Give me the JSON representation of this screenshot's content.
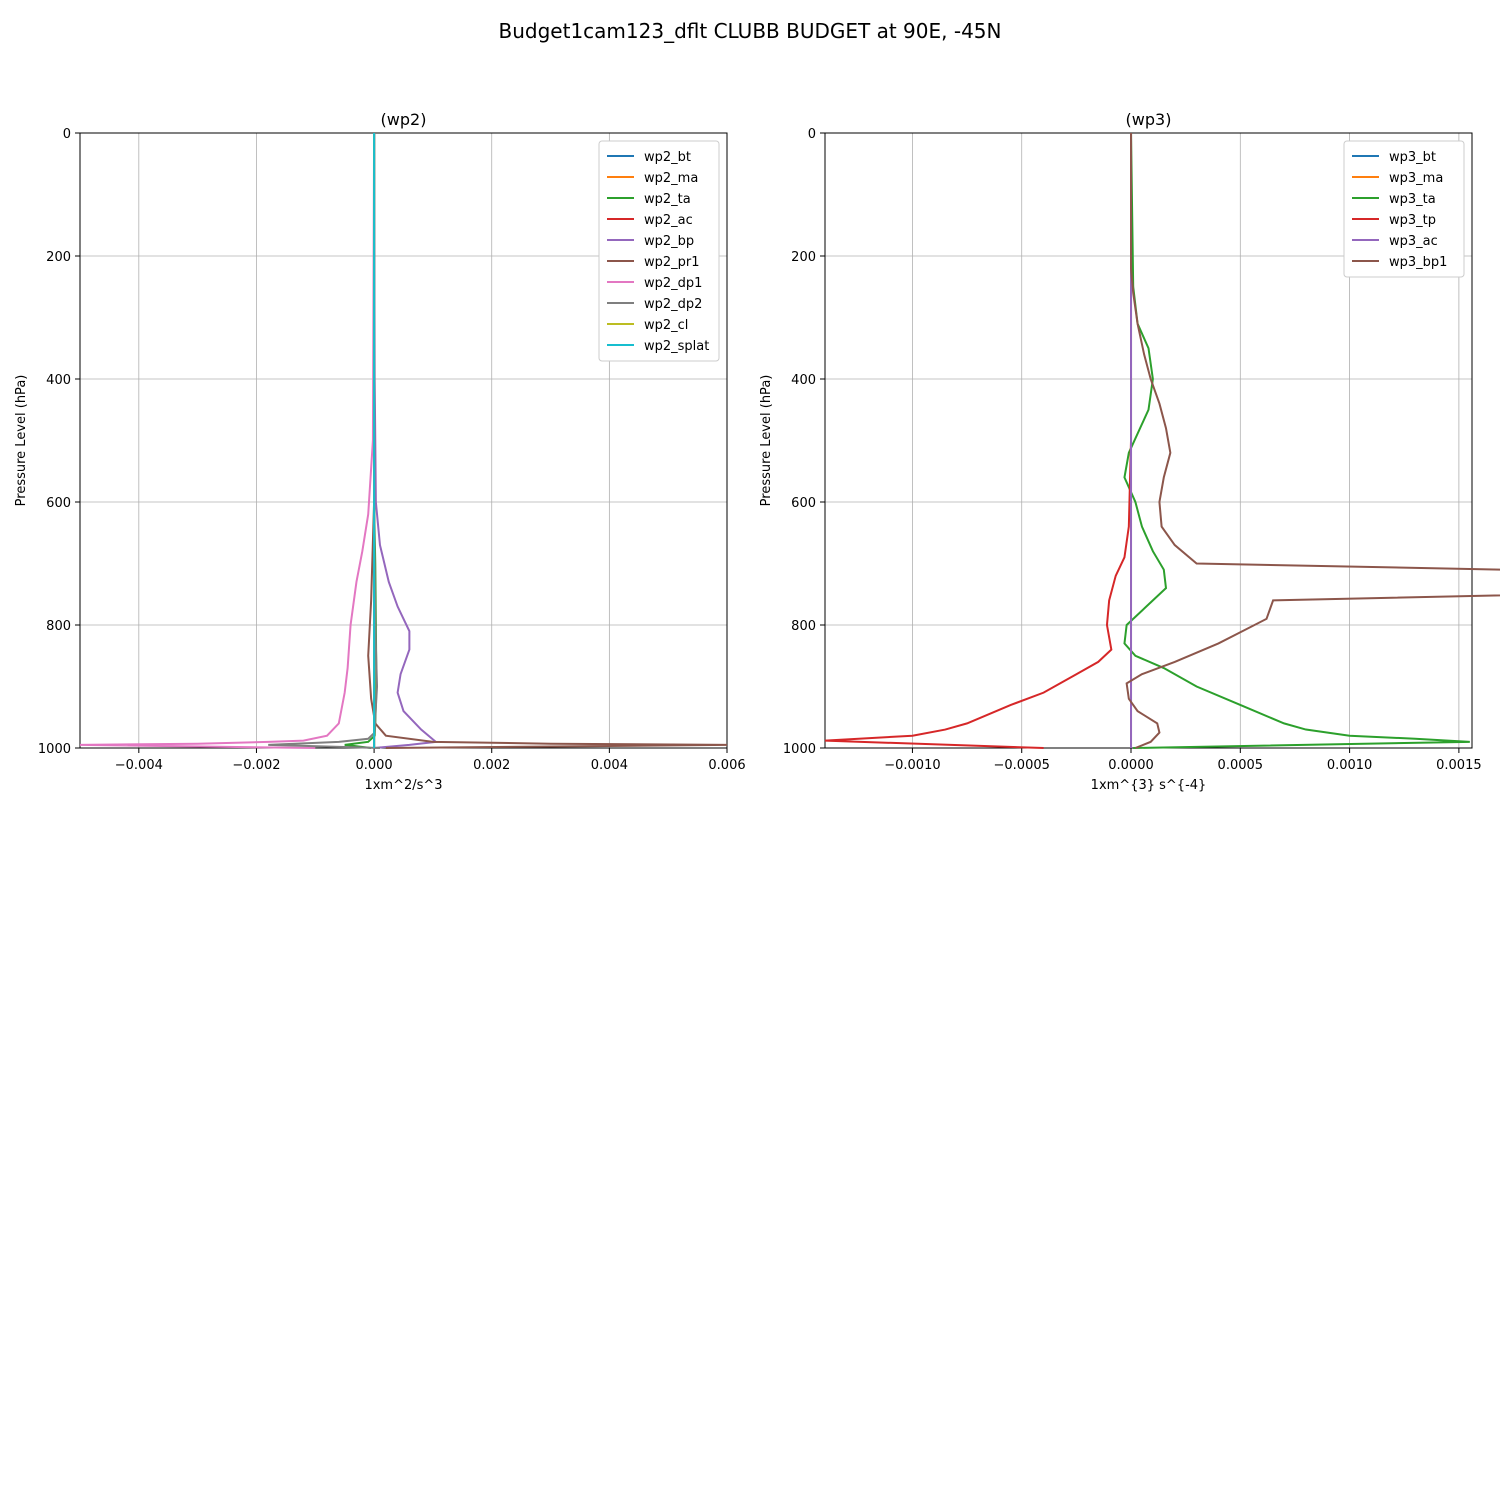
{
  "figure": {
    "title": "Budget1cam123_dflt CLUBB BUDGET at 90E, -45N"
  },
  "chart_data": [
    {
      "type": "line",
      "title": "(wp2)",
      "xlabel": "1xm^2/s^3",
      "ylabel": "Pressure Level (hPa)",
      "xlim": [
        -0.005,
        0.006
      ],
      "ylim": [
        1000,
        0
      ],
      "xticks": [
        -0.004,
        -0.002,
        0.0,
        0.002,
        0.004,
        0.006
      ],
      "xtick_labels": [
        "−0.004",
        "−0.002",
        "0.000",
        "0.002",
        "0.004",
        "0.006"
      ],
      "yticks": [
        0,
        200,
        400,
        600,
        800,
        1000
      ],
      "grid": true,
      "legend": "top-right",
      "series": [
        {
          "name": "wp2_bt",
          "color": "#1f77b4",
          "x": [
            0,
            0,
            0,
            0,
            0
          ],
          "y": [
            0,
            250,
            500,
            750,
            1000
          ]
        },
        {
          "name": "wp2_ma",
          "color": "#ff7f0e",
          "x": [
            0,
            0,
            0,
            0,
            0
          ],
          "y": [
            0,
            250,
            500,
            750,
            1000
          ]
        },
        {
          "name": "wp2_ta",
          "color": "#2ca02c",
          "x": [
            0,
            0,
            2e-05,
            3e-05,
            4e-05,
            2e-05,
            1e-05,
            -0.0001,
            -0.0005,
            -5e-05
          ],
          "y": [
            0,
            600,
            700,
            800,
            900,
            960,
            980,
            990,
            995,
            1000
          ]
        },
        {
          "name": "wp2_ac",
          "color": "#d62728",
          "x": [
            0,
            0,
            0,
            0
          ],
          "y": [
            0,
            500,
            900,
            1000
          ]
        },
        {
          "name": "wp2_bp",
          "color": "#9467bd",
          "x": [
            0,
            1e-05,
            3e-05,
            0.0001,
            0.00025,
            0.0004,
            0.0006,
            0.0006,
            0.00045,
            0.0004,
            0.0005,
            0.0008,
            0.00105,
            0.0006,
            0
          ],
          "y": [
            0,
            400,
            600,
            670,
            730,
            770,
            810,
            840,
            880,
            910,
            940,
            970,
            990,
            995,
            1000
          ]
        },
        {
          "name": "wp2_pr1",
          "color": "#8c564b",
          "x": [
            0,
            0,
            -5e-05,
            -0.0001,
            -5e-05,
            2e-05,
            0.0002,
            0.001,
            0.003,
            0.006,
            0.0002
          ],
          "y": [
            0,
            600,
            760,
            850,
            920,
            960,
            980,
            990,
            993,
            995,
            1000
          ]
        },
        {
          "name": "wp2_dp1",
          "color": "#e377c2",
          "x": [
            0,
            -2e-05,
            -0.0001,
            -0.0002,
            -0.0003,
            -0.0004,
            -0.00045,
            -0.0005,
            -0.00055,
            -0.0006,
            -0.0008,
            -0.0012,
            -0.0018,
            -0.003,
            -0.005,
            -0.001
          ],
          "y": [
            0,
            500,
            620,
            680,
            730,
            800,
            870,
            910,
            935,
            960,
            980,
            988,
            990,
            993,
            995,
            1000
          ]
        },
        {
          "name": "wp2_dp2",
          "color": "#7f7f7f",
          "x": [
            0,
            0,
            2e-05,
            5e-05,
            2e-05,
            1e-05,
            -0.0001,
            -0.0006,
            -0.0018,
            0.0001
          ],
          "y": [
            0,
            600,
            800,
            900,
            950,
            975,
            985,
            990,
            995,
            1000
          ]
        },
        {
          "name": "wp2_cl",
          "color": "#bcbd22",
          "x": [
            0,
            0,
            0
          ],
          "y": [
            0,
            500,
            1000
          ]
        },
        {
          "name": "wp2_splat",
          "color": "#17becf",
          "x": [
            0,
            0,
            0
          ],
          "y": [
            0,
            500,
            1000
          ]
        }
      ]
    },
    {
      "type": "line",
      "title": "(wp3)",
      "xlabel": "1xm^{3} s^{-4}",
      "ylabel": "Pressure Level (hPa)",
      "xlim": [
        -0.0014,
        0.00156
      ],
      "ylim": [
        1000,
        0
      ],
      "xticks": [
        -0.001,
        -0.0005,
        0.0,
        0.0005,
        0.001,
        0.0015
      ],
      "xtick_labels": [
        "−0.0010",
        "−0.0005",
        "0.0000",
        "0.0005",
        "0.0010",
        "0.0015"
      ],
      "yticks": [
        0,
        200,
        400,
        600,
        800,
        1000
      ],
      "grid": true,
      "legend": "top-right",
      "series": [
        {
          "name": "wp3_bt",
          "color": "#1f77b4",
          "x": [
            0,
            0,
            0,
            0,
            0
          ],
          "y": [
            0,
            250,
            500,
            750,
            1000
          ]
        },
        {
          "name": "wp3_ma",
          "color": "#ff7f0e",
          "x": [
            0,
            0,
            0,
            0,
            0
          ],
          "y": [
            0,
            250,
            500,
            750,
            1000
          ]
        },
        {
          "name": "wp3_ta",
          "color": "#2ca02c",
          "x": [
            0,
            1e-05,
            3e-05,
            8e-05,
            0.0001,
            8e-05,
            -1e-05,
            -3e-05,
            2e-05,
            5e-05,
            0.0001,
            0.00015,
            0.00016,
            0.0001,
            -2e-05,
            -3e-05,
            2e-05,
            0.00015,
            0.0003,
            0.0005,
            0.0007,
            0.0008,
            0.001,
            0.0013,
            0.00155,
            1e-05
          ],
          "y": [
            0,
            250,
            310,
            350,
            400,
            450,
            520,
            560,
            600,
            640,
            680,
            710,
            740,
            760,
            800,
            830,
            850,
            870,
            900,
            930,
            960,
            970,
            980,
            985,
            990,
            1000
          ]
        },
        {
          "name": "wp3_tp",
          "color": "#d62728",
          "x": [
            0,
            0,
            -1e-05,
            -3e-05,
            -7e-05,
            -0.0001,
            -0.00011,
            -9e-05,
            -0.00015,
            -0.00025,
            -0.0004,
            -0.00055,
            -0.00075,
            -0.00085,
            -0.001,
            -0.0014,
            -0.0004
          ],
          "y": [
            0,
            500,
            640,
            690,
            720,
            760,
            800,
            840,
            860,
            880,
            910,
            930,
            960,
            970,
            980,
            988,
            1000
          ]
        },
        {
          "name": "wp3_ac",
          "color": "#9467bd",
          "x": [
            0,
            0,
            0
          ],
          "y": [
            0,
            500,
            1000
          ]
        },
        {
          "name": "wp3_bp1",
          "color": "#8c564b",
          "x": [
            0,
            0,
            0,
            1e-05,
            3e-05,
            6e-05,
            9e-05,
            0.00013,
            0.00016,
            0.00018,
            0.00015,
            0.00013,
            0.00014,
            0.0002,
            0.0003,
            0.0045,
            0.00065,
            0.00062,
            0.0004,
            0.0002,
            5e-05,
            -2e-05,
            -1e-05,
            3e-05,
            0.00012,
            0.00013,
            9e-05,
            2e-05
          ],
          "y": [
            0,
            180,
            220,
            260,
            310,
            360,
            400,
            440,
            480,
            520,
            560,
            600,
            640,
            670,
            700,
            730,
            760,
            790,
            830,
            860,
            880,
            895,
            920,
            940,
            960,
            975,
            990,
            1000
          ]
        }
      ]
    }
  ]
}
